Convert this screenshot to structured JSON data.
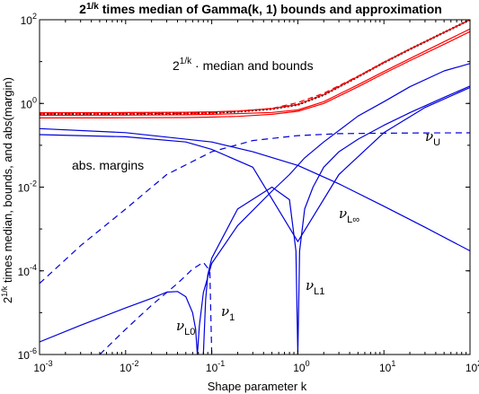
{
  "chart_data": {
    "type": "line",
    "title_base": "2",
    "title_exp": "1/k",
    "title_rest": " times median of Gamma(k, 1) bounds and approximation",
    "xlabel": "Shape parameter k",
    "ylabel_base": "2",
    "ylabel_exp": "1/k",
    "ylabel_rest": " times median, bounds, and abs(margin)",
    "xscale": "log",
    "yscale": "log",
    "xlim": [
      0.001,
      100
    ],
    "ylim": [
      1e-06,
      100
    ],
    "grid": false,
    "xticks": [
      {
        "value": 0.001,
        "base": "10",
        "exp": "-3"
      },
      {
        "value": 0.01,
        "base": "10",
        "exp": "-2"
      },
      {
        "value": 0.1,
        "base": "10",
        "exp": "-1"
      },
      {
        "value": 1,
        "base": "10",
        "exp": "0"
      },
      {
        "value": 10,
        "base": "10",
        "exp": "1"
      },
      {
        "value": 100,
        "base": "10",
        "exp": "2"
      }
    ],
    "yticks": [
      {
        "value": 1e-06,
        "base": "10",
        "exp": "-6"
      },
      {
        "value": 0.0001,
        "base": "10",
        "exp": "-4"
      },
      {
        "value": 0.01,
        "base": "10",
        "exp": "-2"
      },
      {
        "value": 1,
        "base": "10",
        "exp": "0"
      },
      {
        "value": 100,
        "base": "10",
        "exp": "2"
      }
    ],
    "annotations": {
      "top_base": "2",
      "top_exp": "1/k",
      "top_rest": " · median and bounds",
      "abs_margins": "abs. margins",
      "nu": "ν",
      "sub_U": "U",
      "sub_Linf": "L∞",
      "sub_L1": "L1",
      "sub_1": "1",
      "sub_L0": "L0"
    },
    "colors": {
      "median": "#000000",
      "bounds": "#ff0000",
      "margins": "#0000dd"
    },
    "series": [
      {
        "style": "black-dotted",
        "x": [
          0.001,
          0.01,
          0.05,
          0.1,
          0.2,
          0.5,
          1,
          2,
          5,
          10,
          20,
          50,
          100
        ],
        "y": [
          0.561,
          0.565,
          0.58,
          0.6,
          0.64,
          0.74,
          0.931,
          1.6,
          4.35,
          9.5,
          19.7,
          49.8,
          99.8
        ]
      },
      {
        "style": "red-solid",
        "x": [
          0.001,
          0.01,
          0.05,
          0.1,
          0.2,
          0.5,
          1,
          2,
          5,
          10,
          20,
          50,
          100
        ],
        "y": [
          0.6,
          0.605,
          0.615,
          0.63,
          0.66,
          0.75,
          0.94,
          1.62,
          4.37,
          9.5,
          19.7,
          49.8,
          99.8
        ]
      },
      {
        "style": "red-solid",
        "x": [
          0.001,
          0.01,
          0.05,
          0.1,
          0.2,
          0.5,
          1,
          2,
          5,
          10,
          20,
          50,
          100
        ],
        "y": [
          0.52,
          0.525,
          0.535,
          0.55,
          0.57,
          0.61,
          0.7,
          1.1,
          2.8,
          5.8,
          11.8,
          30,
          60
        ]
      },
      {
        "style": "red-solid",
        "x": [
          0.001,
          0.01,
          0.05,
          0.1,
          0.2,
          0.5,
          1,
          2,
          5,
          10,
          20,
          50,
          100
        ],
        "y": [
          0.45,
          0.455,
          0.46,
          0.47,
          0.49,
          0.55,
          0.65,
          1.0,
          2.5,
          5.2,
          10.5,
          26,
          52
        ]
      },
      {
        "style": "red-dashed",
        "x": [
          0.001,
          0.01,
          0.05,
          0.1,
          0.2,
          0.5,
          1,
          2,
          5,
          10,
          20,
          50,
          100
        ],
        "y": [
          0.56,
          0.565,
          0.58,
          0.6,
          0.64,
          0.76,
          1.05,
          1.75,
          4.5,
          9.7,
          20,
          50,
          100
        ]
      },
      {
        "style": "blue-solid",
        "x": [
          0.001,
          0.01,
          0.1,
          0.3,
          1,
          3,
          10,
          30,
          100
        ],
        "y": [
          0.25,
          0.2,
          0.12,
          0.07,
          0.033,
          0.012,
          0.0035,
          0.0011,
          0.0003
        ]
      },
      {
        "style": "blue-dashed",
        "x": [
          0.001,
          0.003,
          0.01,
          0.03,
          0.1,
          0.3,
          1,
          3,
          10,
          30,
          100
        ],
        "y": [
          5e-05,
          0.0004,
          0.003,
          0.02,
          0.07,
          0.13,
          0.17,
          0.19,
          0.195,
          0.197,
          0.198
        ]
      },
      {
        "style": "blue-solid",
        "x": [
          0.001,
          0.01,
          0.05,
          0.1,
          0.3,
          1,
          3,
          10,
          30,
          100
        ],
        "y": [
          0.18,
          0.16,
          0.12,
          0.08,
          0.03,
          0.0005,
          0.02,
          0.2,
          0.8,
          2.4
        ]
      },
      {
        "style": "blue-solid",
        "x": [
          0.001,
          0.003,
          0.01,
          0.02,
          0.03,
          0.04,
          0.05,
          0.06,
          0.065,
          0.068
        ],
        "y": [
          2e-06,
          5e-06,
          1.3e-05,
          2.2e-05,
          3.1e-05,
          3.2e-05,
          2.4e-05,
          1e-05,
          4e-06,
          1e-06
        ]
      },
      {
        "style": "blue-solid",
        "x": [
          0.068,
          0.072,
          0.08,
          0.1,
          0.2,
          0.5,
          0.8,
          1.2,
          2,
          5,
          10,
          20,
          50,
          100
        ],
        "y": [
          1e-06,
          5e-06,
          3e-05,
          0.00015,
          0.0012,
          0.008,
          0.02,
          0.05,
          0.12,
          0.5,
          1.1,
          2.5,
          6,
          9
        ]
      },
      {
        "style": "blue-dashed",
        "x": [
          0.005,
          0.01,
          0.02,
          0.04,
          0.06,
          0.08,
          0.095,
          0.1
        ],
        "y": [
          1e-06,
          4e-06,
          1.5e-05,
          5e-05,
          0.00011,
          0.00016,
          0.0001,
          1e-06
        ]
      },
      {
        "style": "blue-solid",
        "x": [
          0.08,
          0.085,
          0.09,
          0.1,
          0.2,
          0.5,
          0.8,
          0.95,
          1.0,
          1.05,
          1.2,
          1.5,
          2,
          3,
          5,
          10,
          20,
          50,
          100
        ],
        "y": [
          1e-06,
          2e-05,
          8e-05,
          0.0002,
          0.003,
          0.01,
          0.005,
          0.0003,
          1e-06,
          0.0003,
          0.003,
          0.01,
          0.03,
          0.07,
          0.14,
          0.3,
          0.6,
          1.4,
          2.6
        ]
      }
    ]
  }
}
